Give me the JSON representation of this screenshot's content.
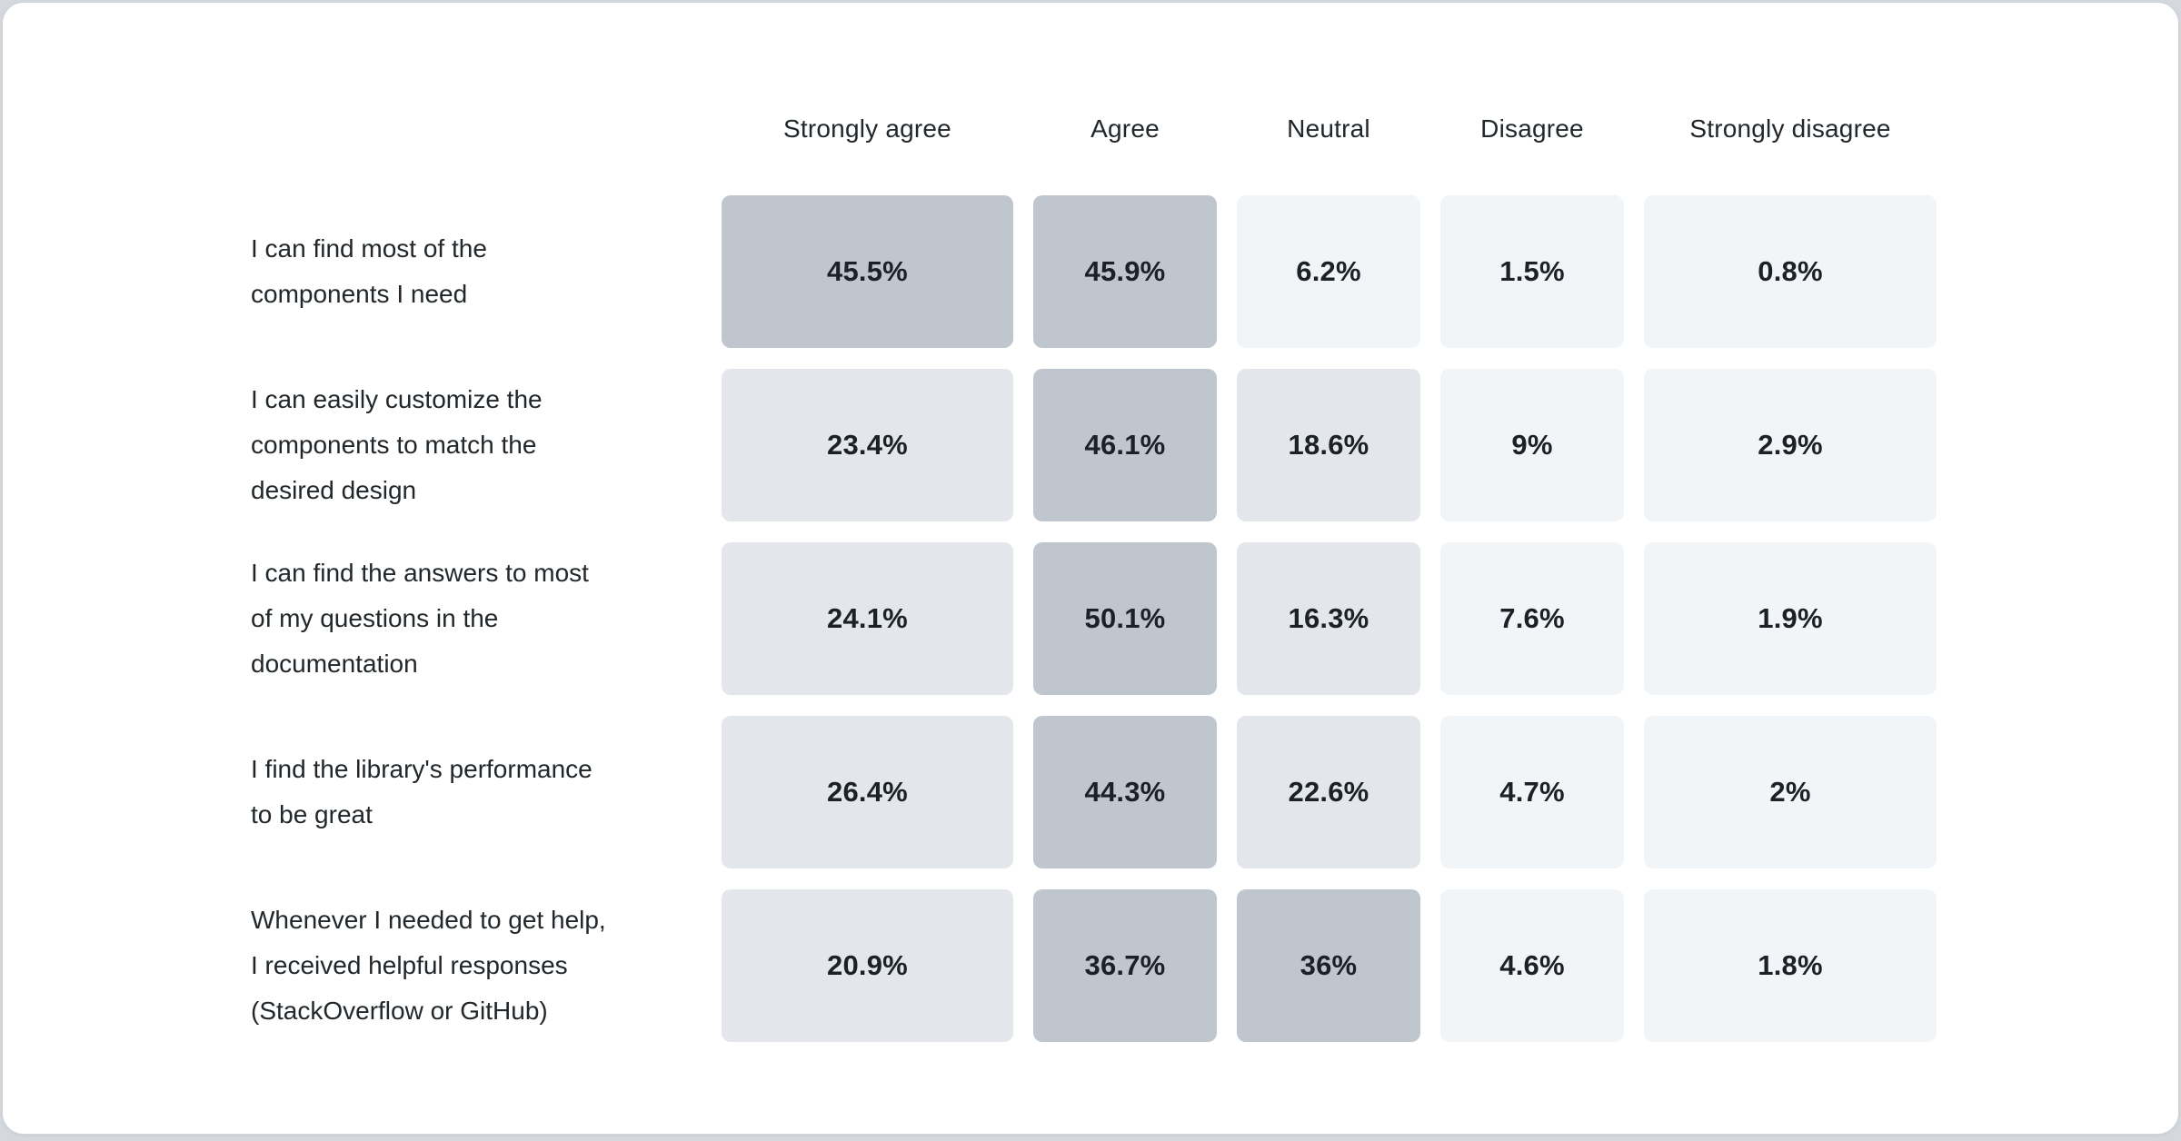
{
  "chart_data": {
    "type": "heatmap",
    "title": "",
    "columns": [
      "Strongly agree",
      "Agree",
      "Neutral",
      "Disagree",
      "Strongly disagree"
    ],
    "rows": [
      {
        "label": "I can find most of the components I need",
        "label_lines": [
          "I can find most of the",
          "components I need"
        ],
        "values": [
          45.5,
          45.9,
          6.2,
          1.5,
          0.8
        ]
      },
      {
        "label": "I can easily customize the components to match the desired design",
        "label_lines": [
          "I can easily customize the",
          "components to match the",
          "desired design"
        ],
        "values": [
          23.4,
          46.1,
          18.6,
          9,
          2.9
        ]
      },
      {
        "label": "I can find the answers to most of my questions in the documentation",
        "label_lines": [
          "I can find the answers to most",
          "of my questions in the",
          "documentation"
        ],
        "values": [
          24.1,
          50.1,
          16.3,
          7.6,
          1.9
        ]
      },
      {
        "label": "I find the library's performance to be great",
        "label_lines": [
          "I find the library's performance",
          "to be great"
        ],
        "values": [
          26.4,
          44.3,
          22.6,
          4.7,
          2
        ]
      },
      {
        "label": "Whenever I needed to get help, I received helpful responses (StackOverflow or GitHub)",
        "label_lines": [
          "Whenever I needed to get help,",
          "I received helpful responses",
          "(StackOverflow or GitHub)"
        ],
        "values": [
          20.9,
          36.7,
          36,
          4.6,
          1.8
        ]
      }
    ],
    "value_format": "percent",
    "legend_position": "none",
    "grid": false,
    "scale": {
      "light": "#f2f5f8",
      "medium": "#e3e7eb",
      "dark": "#bfc6ce",
      "thresholds": [
        10,
        30
      ]
    },
    "colors": {
      "card_background": "#ffffff",
      "page_background": "#d5d9de",
      "card_border": "#d0d5da",
      "header_text": "#21272a",
      "label_text": "#21272a",
      "value_text": "#1b2127"
    }
  }
}
